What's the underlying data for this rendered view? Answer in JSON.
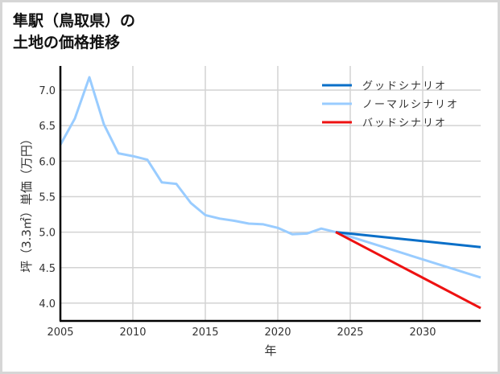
{
  "title": {
    "line1": "隼駅（鳥取県）の",
    "line2": "土地の価格推移"
  },
  "colors": {
    "good": "#0a6fc8",
    "normal": "#99ccff",
    "bad": "#ee1111",
    "grid": "#d3d3d3",
    "axis": "#000000"
  },
  "chart_data": {
    "type": "line",
    "title": "隼駅（鳥取県）の土地の価格推移",
    "xlabel": "年",
    "ylabel": "坪（3.3㎡）単価（万円）",
    "xlim": [
      2005,
      2034
    ],
    "ylim": [
      3.75,
      7.34
    ],
    "xticks": [
      2005,
      2010,
      2015,
      2020,
      2025,
      2030
    ],
    "yticks": [
      4.0,
      4.5,
      5.0,
      5.5,
      6.0,
      6.5,
      7.0
    ],
    "ytick_labels": [
      "4.0",
      "4.5",
      "5.0",
      "5.5",
      "6.0",
      "6.5",
      "7.0"
    ],
    "grid": true,
    "legend_position": "upper right",
    "series": [
      {
        "name": "グッドシナリオ",
        "color": "#0a6fc8",
        "x": [
          2024,
          2034
        ],
        "values": [
          5.0,
          4.79
        ]
      },
      {
        "name": "ノーマルシナリオ",
        "color": "#99ccff",
        "x": [
          2005,
          2006,
          2007,
          2008,
          2009,
          2010,
          2011,
          2012,
          2013,
          2014,
          2015,
          2016,
          2017,
          2018,
          2019,
          2020,
          2021,
          2022,
          2023,
          2024,
          2034
        ],
        "values": [
          6.23,
          6.6,
          7.18,
          6.52,
          6.11,
          6.07,
          6.02,
          5.7,
          5.68,
          5.41,
          5.24,
          5.19,
          5.16,
          5.12,
          5.11,
          5.06,
          4.97,
          4.98,
          5.05,
          5.0,
          4.36
        ]
      },
      {
        "name": "バッドシナリオ",
        "color": "#ee1111",
        "x": [
          2024,
          2034
        ],
        "values": [
          5.0,
          3.93
        ]
      }
    ]
  }
}
